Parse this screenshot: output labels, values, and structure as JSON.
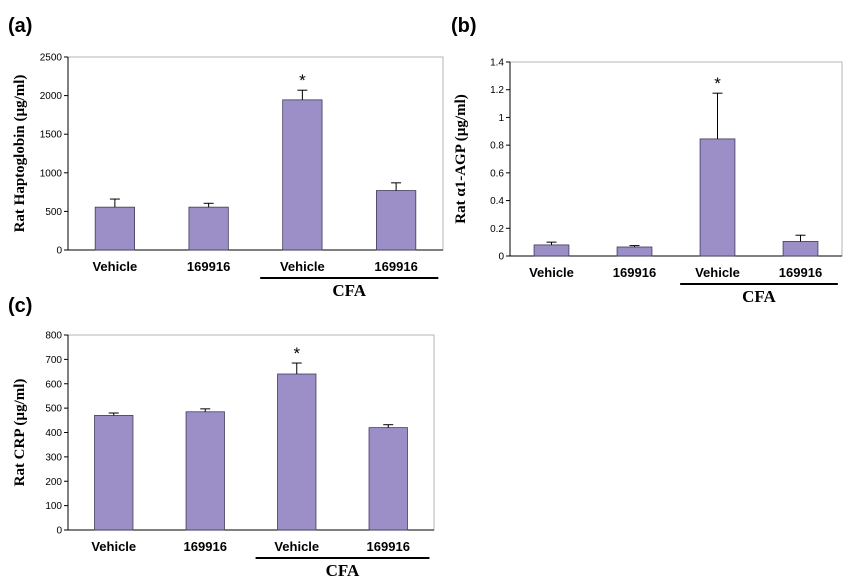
{
  "chart_data": [
    {
      "panel": "(a)",
      "type": "bar",
      "categories": [
        "Vehicle",
        "169916",
        "Vehicle",
        "169916"
      ],
      "values": [
        555,
        555,
        1945,
        770
      ],
      "errors": [
        105,
        50,
        125,
        100
      ],
      "significance": [
        "",
        "",
        "*",
        ""
      ],
      "ylabel": "Rat Haptoglobin (µg/ml)",
      "yticks": [
        "0",
        "500",
        "1000",
        "1500",
        "2000",
        "2500"
      ],
      "ylim": [
        0,
        2500
      ],
      "group_label": "CFA",
      "group_categories": [
        2,
        3
      ],
      "bar_color": "#9c8fc7",
      "grid": false
    },
    {
      "panel": "(b)",
      "type": "bar",
      "categories": [
        "Vehicle",
        "169916",
        "Vehicle",
        "169916"
      ],
      "values": [
        0.08,
        0.065,
        0.845,
        0.105
      ],
      "errors": [
        0.02,
        0.01,
        0.33,
        0.045
      ],
      "significance": [
        "",
        "",
        "*",
        ""
      ],
      "ylabel": "Rat α1-AGP (µg/ml)",
      "yticks": [
        "0",
        "0.2",
        "0.4",
        "0.6",
        "0.8",
        "1",
        "1.2",
        "1.4"
      ],
      "ylim": [
        0,
        1.4
      ],
      "group_label": "CFA",
      "group_categories": [
        2,
        3
      ],
      "bar_color": "#9c8fc7",
      "grid": false
    },
    {
      "panel": "(c)",
      "type": "bar",
      "categories": [
        "Vehicle",
        "169916",
        "Vehicle",
        "169916"
      ],
      "values": [
        470,
        485,
        640,
        420
      ],
      "errors": [
        10,
        12,
        45,
        12
      ],
      "significance": [
        "",
        "",
        "*",
        ""
      ],
      "ylabel": "Rat CRP (µg/ml)",
      "yticks": [
        "0",
        "100",
        "200",
        "300",
        "400",
        "500",
        "600",
        "700",
        "800"
      ],
      "ylim": [
        0,
        800
      ],
      "group_label": "CFA",
      "group_categories": [
        2,
        3
      ],
      "bar_color": "#9c8fc7",
      "grid": false
    }
  ]
}
